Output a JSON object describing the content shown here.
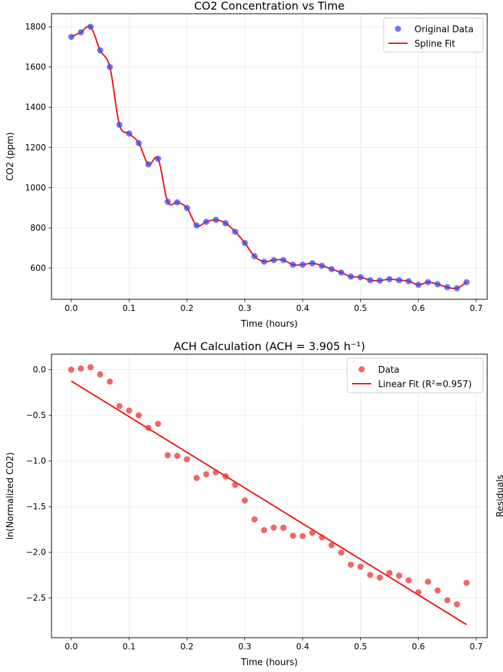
{
  "chart_data": [
    {
      "type": "scatter",
      "title": "CO2 Concentration vs Time",
      "xlabel": "Time (hours)",
      "ylabel": "CO2 (ppm)",
      "xlim": [
        -0.0342,
        0.719
      ],
      "ylim": [
        445,
        1865
      ],
      "xticks": [
        0.0,
        0.1,
        0.2,
        0.3,
        0.4,
        0.5,
        0.6,
        0.7
      ],
      "xtick_labels": [
        "0.0",
        "0.1",
        "0.2",
        "0.3",
        "0.4",
        "0.5",
        "0.6",
        "0.7"
      ],
      "yticks": [
        600,
        800,
        1000,
        1200,
        1400,
        1600,
        1800
      ],
      "ytick_labels": [
        "600",
        "800",
        "1000",
        "1200",
        "1400",
        "1600",
        "1800"
      ],
      "grid": true,
      "legend_position": "top-right",
      "series": [
        {
          "name": "Original Data",
          "kind": "scatter",
          "color": "#4444ee",
          "x": [
            0.0,
            0.0167,
            0.0333,
            0.05,
            0.0667,
            0.0833,
            0.1,
            0.1167,
            0.1333,
            0.15,
            0.1667,
            0.1833,
            0.2,
            0.2167,
            0.2333,
            0.25,
            0.2667,
            0.2833,
            0.3,
            0.3167,
            0.3333,
            0.35,
            0.3667,
            0.3833,
            0.4,
            0.4167,
            0.4333,
            0.45,
            0.4667,
            0.4833,
            0.5,
            0.5167,
            0.5333,
            0.55,
            0.5667,
            0.5833,
            0.6,
            0.6167,
            0.6333,
            0.65,
            0.6667,
            0.6833
          ],
          "y": [
            1750,
            1773,
            1800,
            1683,
            1600,
            1313,
            1269,
            1222,
            1116,
            1144,
            930,
            927,
            899,
            812,
            830,
            840,
            823,
            781,
            725,
            659,
            632,
            640,
            640,
            617,
            617,
            624,
            612,
            595,
            578,
            558,
            555,
            540,
            538,
            545,
            540,
            535,
            517,
            530,
            520,
            505,
            500,
            530
          ]
        },
        {
          "name": "Spline Fit",
          "kind": "spline",
          "color": "#ee1111"
        }
      ]
    },
    {
      "type": "scatter",
      "title": "ACH Calculation (ACH = 3.905 h⁻¹)",
      "xlabel": "Time (hours)",
      "ylabel": "ln(Normalized CO2)",
      "right_label": "Residuals",
      "xlim": [
        -0.0342,
        0.719
      ],
      "ylim": [
        -2.935,
        0.17
      ],
      "xticks": [
        0.0,
        0.1,
        0.2,
        0.3,
        0.4,
        0.5,
        0.6,
        0.7
      ],
      "xtick_labels": [
        "0.0",
        "0.1",
        "0.2",
        "0.3",
        "0.4",
        "0.5",
        "0.6",
        "0.7"
      ],
      "yticks": [
        -2.5,
        -2.0,
        -1.5,
        -1.0,
        -0.5,
        0.0
      ],
      "ytick_labels": [
        "−2.5",
        "−2.0",
        "−1.5",
        "−1.0",
        "−0.5",
        "0.0"
      ],
      "grid": true,
      "legend_position": "top-right",
      "series": [
        {
          "name": "Data",
          "kind": "scatter",
          "color": "#ee3333",
          "x": [
            0.0,
            0.0167,
            0.0333,
            0.05,
            0.0667,
            0.0833,
            0.1,
            0.1167,
            0.1333,
            0.15,
            0.1667,
            0.1833,
            0.2,
            0.2167,
            0.2333,
            0.25,
            0.2667,
            0.2833,
            0.3,
            0.3167,
            0.3333,
            0.35,
            0.3667,
            0.3833,
            0.4,
            0.4167,
            0.4333,
            0.45,
            0.4667,
            0.4833,
            0.5,
            0.5167,
            0.5333,
            0.55,
            0.5667,
            0.5833,
            0.6,
            0.6167,
            0.6333,
            0.65,
            0.6667,
            0.6833
          ],
          "y": [
            0.0,
            0.013,
            0.028,
            -0.051,
            -0.13,
            -0.398,
            -0.447,
            -0.5,
            -0.636,
            -0.593,
            -0.937,
            -0.943,
            -0.982,
            -1.186,
            -1.145,
            -1.124,
            -1.167,
            -1.262,
            -1.432,
            -1.639,
            -1.757,
            -1.73,
            -1.731,
            -1.818,
            -1.822,
            -1.787,
            -1.836,
            -1.922,
            -2.003,
            -2.135,
            -2.158,
            -2.248,
            -2.277,
            -2.226,
            -2.256,
            -2.307,
            -2.439,
            -2.322,
            -2.418,
            -2.525,
            -2.569,
            -2.334
          ]
        },
        {
          "name": "Linear Fit (R²=0.957)",
          "kind": "line",
          "color": "#ee1111",
          "x": [
            0.0,
            0.6833
          ],
          "y": [
            -0.124,
            -2.792
          ]
        }
      ]
    }
  ]
}
